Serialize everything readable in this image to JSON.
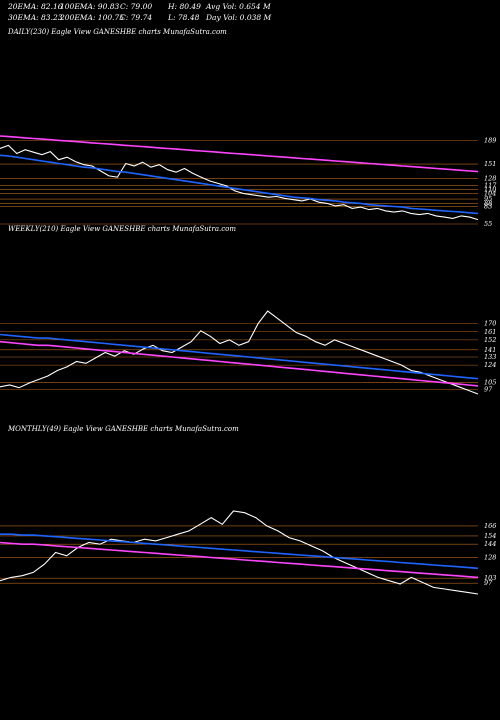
{
  "header": {
    "row1": [
      "20EMA: 82.16",
      "100EMA: 90.83",
      "C: 79.00",
      "H: 80.49",
      "Avg Vol: 0.654  M"
    ],
    "row2": [
      "30EMA: 83.23",
      "200EMA: 100.75",
      "C: 79.74",
      "L: 78.48",
      "Day Vol: 0.038  M"
    ]
  },
  "chart_data": [
    {
      "type": "line",
      "title": "DAILY(230) Eagle   View  GANESHBE charts MunafaSutra.com",
      "yticks": [
        "189",
        "151",
        "128",
        "117",
        "110",
        "104",
        "95",
        "88",
        "83",
        "55"
      ],
      "series": [
        {
          "name": "",
          "color": "#ffffff",
          "values": [
            176,
            181,
            168,
            174,
            170,
            166,
            171,
            158,
            162,
            155,
            150,
            148,
            140,
            132,
            130,
            152,
            148,
            154,
            146,
            150,
            142,
            138,
            144,
            136,
            130,
            124,
            120,
            116,
            108,
            104,
            102,
            100,
            98,
            99,
            96,
            94,
            92,
            95,
            90,
            88,
            84,
            86,
            80,
            82,
            78,
            80,
            76,
            74,
            76,
            72,
            70,
            72,
            68,
            66,
            64,
            68,
            66,
            62
          ]
        },
        {
          "name": "",
          "color": "#1e64ff",
          "values": [
            165,
            164,
            162,
            160,
            158,
            156,
            154,
            152,
            150,
            148,
            146,
            145,
            143,
            141,
            139,
            138,
            136,
            134,
            132,
            130,
            128,
            126,
            124,
            122,
            120,
            118,
            116,
            114,
            112,
            110,
            108,
            106,
            104,
            102,
            100,
            98,
            97,
            96,
            94,
            93,
            92,
            90,
            89,
            88,
            86,
            85,
            84,
            83,
            82,
            80,
            79,
            78,
            77,
            76,
            75,
            74,
            73,
            72
          ]
        },
        {
          "name": "",
          "color": "#ff44ff",
          "values": [
            196,
            195,
            194,
            193,
            192,
            191,
            190,
            189,
            188,
            187,
            186,
            185,
            184,
            183,
            182,
            181,
            180,
            179,
            178,
            177,
            176,
            175,
            174,
            173,
            172,
            171,
            170,
            169,
            168,
            167,
            166,
            165,
            164,
            163,
            162,
            161,
            160,
            159,
            158,
            157,
            156,
            155,
            154,
            153,
            152,
            151,
            150,
            149,
            148,
            147,
            146,
            145,
            144,
            143,
            142,
            141,
            140,
            139
          ]
        }
      ]
    },
    {
      "type": "line",
      "title": "WEEKLY(210) Eagle   View  GANESHBE charts MunafaSutra.com",
      "yticks": [
        "170",
        "161",
        "152",
        "141",
        "133",
        "124",
        "105",
        "97"
      ],
      "series": [
        {
          "name": "",
          "color": "#ffffff",
          "values": [
            100,
            102,
            99,
            104,
            108,
            112,
            118,
            122,
            128,
            126,
            132,
            138,
            134,
            140,
            136,
            142,
            146,
            140,
            138,
            144,
            150,
            162,
            156,
            148,
            152,
            146,
            150,
            170,
            184,
            176,
            168,
            160,
            156,
            150,
            146,
            152,
            148,
            144,
            140,
            136,
            132,
            128,
            124,
            118,
            116,
            112,
            108,
            104,
            100,
            96,
            92
          ]
        },
        {
          "name": "",
          "color": "#1e64ff",
          "values": [
            158,
            157,
            156,
            155,
            154,
            154,
            153,
            152,
            151,
            150,
            149,
            148,
            147,
            146,
            145,
            144,
            143,
            142,
            141,
            140,
            139,
            138,
            137,
            136,
            135,
            134,
            133,
            132,
            131,
            130,
            129,
            128,
            127,
            126,
            125,
            124,
            123,
            122,
            121,
            120,
            119,
            118,
            117,
            116,
            115,
            114,
            113,
            112,
            111,
            110,
            109
          ]
        },
        {
          "name": "",
          "color": "#ff44ff",
          "values": [
            150,
            149,
            148,
            147,
            146,
            146,
            145,
            144,
            143,
            142,
            141,
            140,
            139,
            138,
            137,
            136,
            135,
            134,
            133,
            132,
            131,
            130,
            129,
            128,
            127,
            126,
            125,
            124,
            123,
            122,
            121,
            120,
            119,
            118,
            117,
            116,
            115,
            114,
            113,
            112,
            111,
            110,
            109,
            108,
            107,
            106,
            105,
            104,
            103,
            102,
            101
          ]
        }
      ]
    },
    {
      "type": "line",
      "title": "MONTHLY(49) Eagle   View  GANESHBE charts MunafaSutra.com",
      "yticks": [
        "166",
        "154",
        "144",
        "128",
        "103",
        "97"
      ],
      "series": [
        {
          "name": "",
          "color": "#ffffff",
          "values": [
            100,
            104,
            106,
            110,
            120,
            134,
            130,
            140,
            146,
            144,
            150,
            148,
            146,
            150,
            148,
            152,
            156,
            160,
            168,
            176,
            168,
            184,
            182,
            176,
            166,
            160,
            152,
            148,
            142,
            136,
            128,
            122,
            116,
            110,
            104,
            100,
            96,
            104,
            98,
            92,
            90,
            88,
            86,
            84
          ]
        },
        {
          "name": "",
          "color": "#1e64ff",
          "values": [
            156,
            156,
            155,
            155,
            154,
            153,
            152,
            151,
            150,
            149,
            148,
            147,
            146,
            145,
            144,
            143,
            142,
            141,
            140,
            139,
            138,
            137,
            136,
            135,
            134,
            133,
            132,
            131,
            130,
            129,
            128,
            127,
            126,
            125,
            124,
            123,
            122,
            121,
            120,
            119,
            118,
            117,
            116,
            115
          ]
        },
        {
          "name": "",
          "color": "#ff44ff",
          "values": [
            146,
            145,
            144,
            144,
            143,
            142,
            141,
            140,
            139,
            138,
            137,
            136,
            135,
            134,
            133,
            132,
            131,
            130,
            129,
            128,
            127,
            126,
            125,
            124,
            123,
            122,
            121,
            120,
            119,
            118,
            117,
            116,
            115,
            114,
            113,
            112,
            111,
            110,
            109,
            108,
            107,
            106,
            105,
            104
          ]
        }
      ]
    }
  ]
}
